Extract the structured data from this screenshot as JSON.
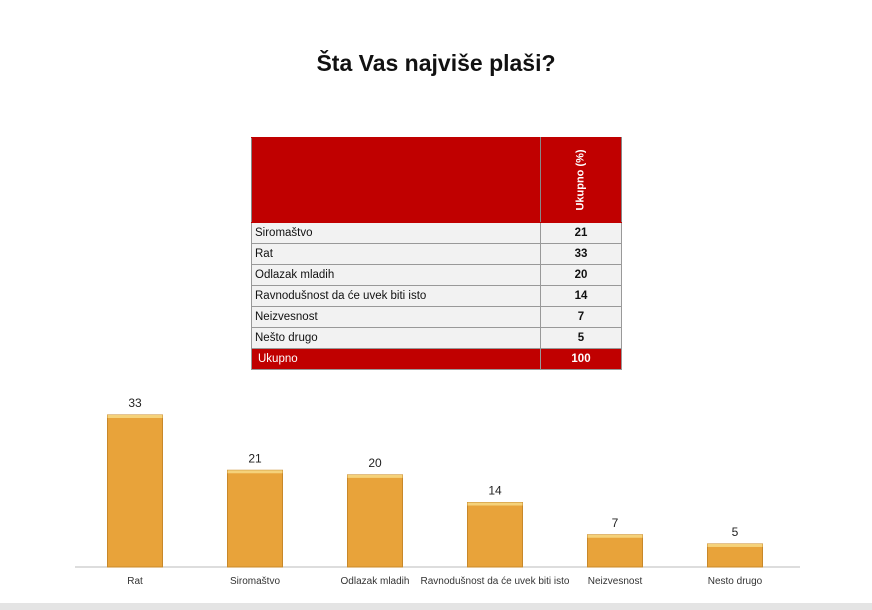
{
  "title": "Šta Vas najviše plaši?",
  "table": {
    "column_header": "Ukupno (%)",
    "rows": [
      {
        "label": "Siromaštvo",
        "value": "21"
      },
      {
        "label": "Rat",
        "value": "33"
      },
      {
        "label": "Odlazak mladih",
        "value": "20"
      },
      {
        "label": "Ravnodušnost da će uvek biti isto",
        "value": "14"
      },
      {
        "label": "Neizvesnost",
        "value": "7"
      },
      {
        "label": "Nešto drugo",
        "value": "5"
      }
    ],
    "total": {
      "label": "Ukupno",
      "value": "100"
    }
  },
  "chart_data": {
    "type": "bar",
    "categories": [
      "Rat",
      "Siromaštvo",
      "Odlazak mladih",
      "Ravnodušnost da će uvek biti isto",
      "Neizvesnost",
      "Nesto drugo"
    ],
    "values": [
      33,
      21,
      20,
      14,
      7,
      5
    ],
    "title": "",
    "xlabel": "",
    "ylabel": "",
    "ylim": [
      0,
      33
    ],
    "grid": false,
    "bar_color": "#e8a33a",
    "data_labels": true
  },
  "colors": {
    "header": "#c00000",
    "bar": "#e8a33a"
  }
}
